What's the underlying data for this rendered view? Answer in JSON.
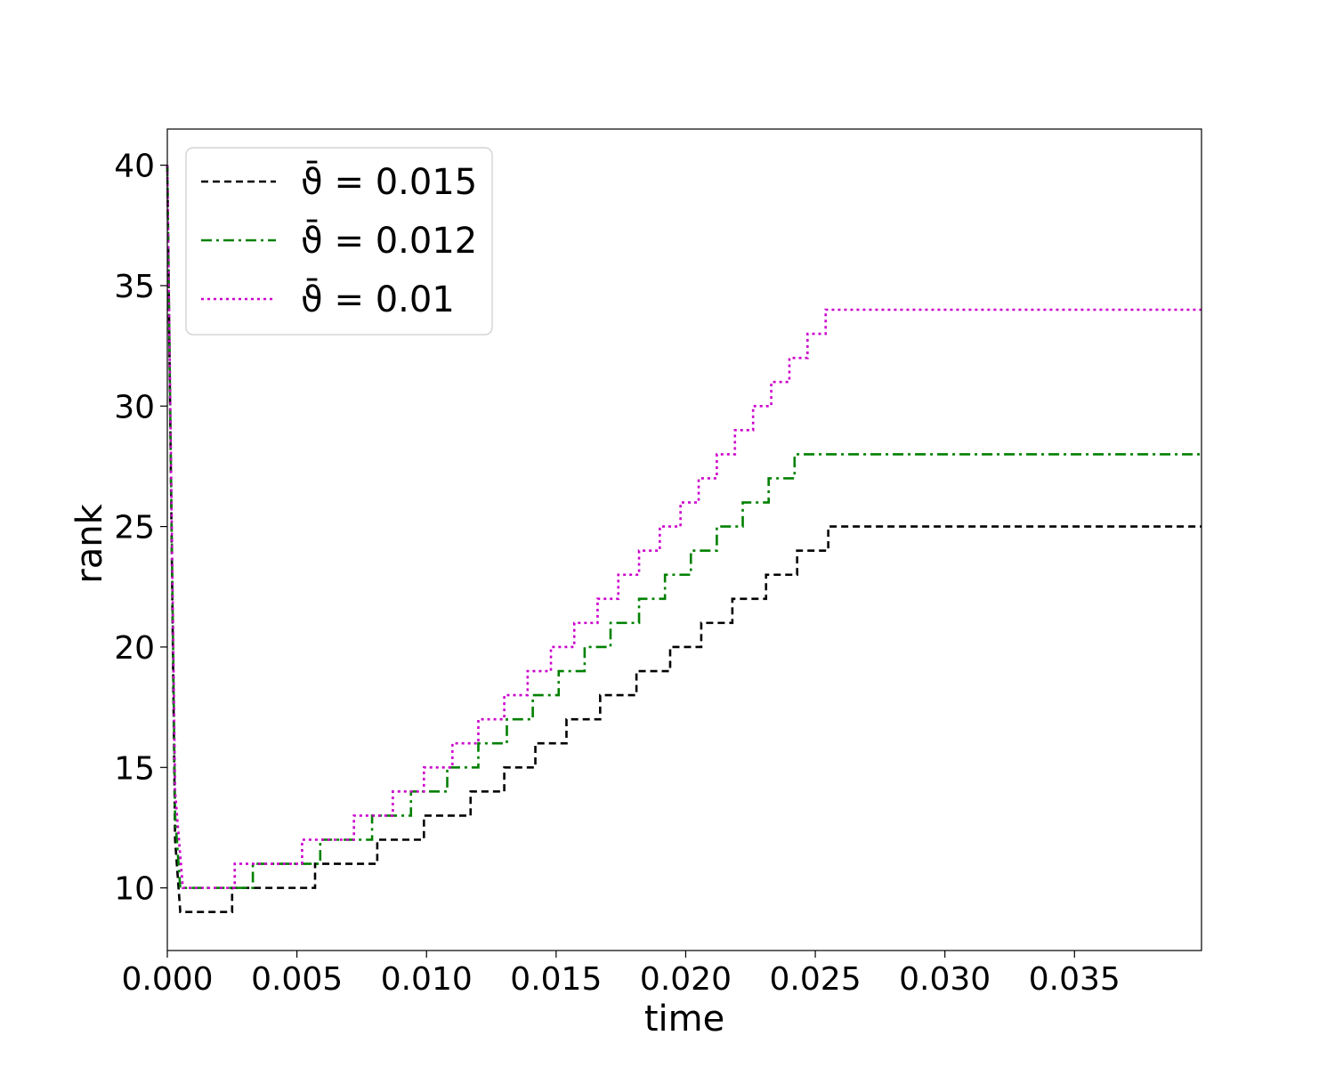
{
  "chart_data": {
    "type": "line",
    "title": "",
    "xlabel": "time",
    "ylabel": "rank",
    "xlim": [
      0.0,
      0.0399
    ],
    "ylim": [
      7.4,
      41.5
    ],
    "x_ticks": [
      0.0,
      0.005,
      0.01,
      0.015,
      0.02,
      0.025,
      0.03,
      0.035
    ],
    "x_tick_labels": [
      "0.000",
      "0.005",
      "0.010",
      "0.015",
      "0.020",
      "0.025",
      "0.030",
      "0.035"
    ],
    "y_ticks": [
      10,
      15,
      20,
      25,
      30,
      35,
      40
    ],
    "y_tick_labels": [
      "10",
      "15",
      "20",
      "25",
      "30",
      "35",
      "40"
    ],
    "grid": false,
    "legend_position": "top-left",
    "series": [
      {
        "name": "ϑ̄ = 0.015",
        "color": "#000000",
        "dash": "dashed",
        "step_times": [
          0.0025,
          0.0057,
          0.0081,
          0.0099,
          0.0117,
          0.013,
          0.0142,
          0.0154,
          0.0167,
          0.0181,
          0.0194,
          0.0206,
          0.0218,
          0.0231,
          0.0243,
          0.0255
        ],
        "initial": {
          "x": [
            0.0,
            0.0003,
            0.0005
          ],
          "y": [
            40,
            12,
            9
          ]
        },
        "final_x": 0.0399,
        "y_start_plateau": 9,
        "y_end": 25
      },
      {
        "name": "ϑ̄ = 0.012",
        "color": "#008000",
        "dash": "dashdot",
        "step_times": [
          0.0033,
          0.0059,
          0.0079,
          0.0094,
          0.0108,
          0.012,
          0.0131,
          0.0141,
          0.0151,
          0.0161,
          0.0171,
          0.0182,
          0.0192,
          0.0202,
          0.0212,
          0.0222,
          0.0232,
          0.0242
        ],
        "initial": {
          "x": [
            0.0,
            0.0003,
            0.0005
          ],
          "y": [
            40,
            13,
            10
          ]
        },
        "final_x": 0.0399,
        "y_start_plateau": 10,
        "y_end": 28
      },
      {
        "name": "ϑ̄ = 0.01",
        "color": "#cc00cc",
        "dash": "dotted",
        "step_times": [
          0.0026,
          0.0052,
          0.0072,
          0.0087,
          0.0099,
          0.011,
          0.012,
          0.013,
          0.0139,
          0.0148,
          0.0157,
          0.0166,
          0.0174,
          0.0182,
          0.019,
          0.0198,
          0.0205,
          0.0212,
          0.0219,
          0.0226,
          0.0233,
          0.024,
          0.0247,
          0.0254
        ],
        "initial": {
          "x": [
            0.0,
            0.0003,
            0.0006
          ],
          "y": [
            40,
            14,
            10
          ]
        },
        "final_x": 0.0399,
        "y_start_plateau": 10,
        "y_end": 34
      }
    ]
  }
}
